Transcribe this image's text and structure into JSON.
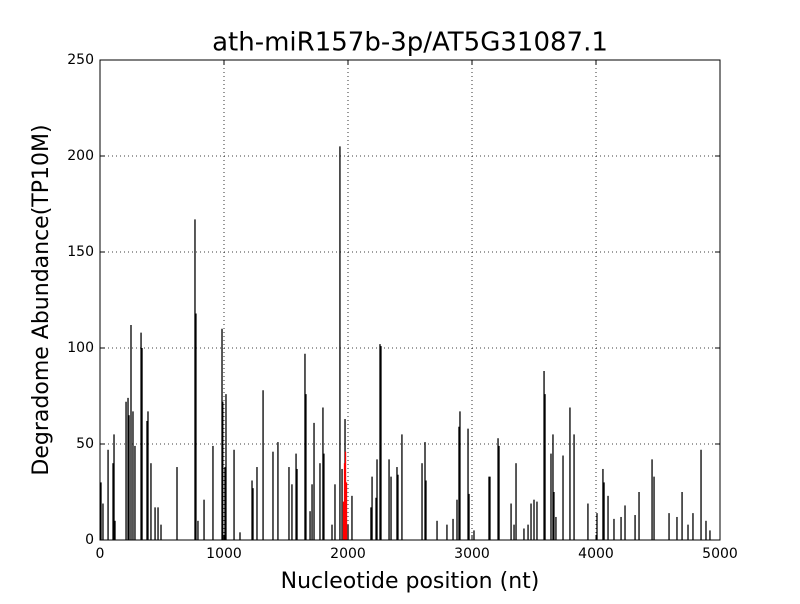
{
  "chart_data": {
    "type": "spike",
    "title": "ath-miR157b-3p/AT5G31087.1",
    "x_label": "Nucleotide position (nt)",
    "y_label": "Degradome Abundance(TP10M)",
    "xlim": [
      0,
      5000
    ],
    "xticks": [
      0,
      1000,
      2000,
      3000,
      4000,
      5000
    ],
    "ylim": [
      0,
      250
    ],
    "yticks": [
      0,
      50,
      100,
      150,
      200,
      250
    ],
    "grid": true,
    "series": [
      {
        "color": "#000000",
        "x": [
          8,
          24,
          65,
          105,
          113,
          121,
          210,
          226,
          234,
          250,
          266,
          282,
          331,
          339,
          379,
          387,
          411,
          444,
          468,
          492,
          621,
          766,
          774,
          790,
          839,
          911,
          984,
          990,
          1008,
          1016,
          1081,
          1129,
          1226,
          1234,
          1266,
          1315,
          1395,
          1435,
          1524,
          1548,
          1581,
          1589,
          1653,
          1661,
          1694,
          1710,
          1726,
          1774,
          1798,
          1806,
          1871,
          1895,
          1935,
          1952,
          1976,
          2000,
          2032,
          2185,
          2194,
          2226,
          2234,
          2258,
          2266,
          2331,
          2347,
          2395,
          2403,
          2435,
          2597,
          2621,
          2629,
          2718,
          2798,
          2847,
          2879,
          2895,
          2903,
          2968,
          2976,
          3016,
          3137,
          3145,
          3210,
          3218,
          3315,
          3339,
          3355,
          3419,
          3452,
          3476,
          3500,
          3524,
          3581,
          3589,
          3637,
          3653,
          3661,
          3677,
          3734,
          3790,
          3823,
          3935,
          4008,
          4056,
          4065,
          4097,
          4145,
          4202,
          4234,
          4315,
          4347,
          4452,
          4468,
          4589,
          4653,
          4694,
          4742,
          4782,
          4847,
          4887,
          4919
        ],
        "values": [
          30,
          19,
          47,
          40,
          55,
          10,
          72,
          74,
          65,
          112,
          67,
          49,
          108,
          100,
          62,
          67,
          40,
          17,
          17,
          8,
          38,
          167,
          118,
          10,
          21,
          49,
          110,
          72,
          38,
          76,
          47,
          4,
          31,
          27,
          38,
          78,
          46,
          51,
          38,
          29,
          45,
          37,
          97,
          76,
          15,
          29,
          61,
          40,
          69,
          45,
          8,
          29,
          205,
          37,
          63,
          8,
          23,
          17,
          33,
          22,
          42,
          102,
          101,
          42,
          33,
          38,
          34,
          55,
          40,
          51,
          31,
          10,
          8,
          11,
          21,
          59,
          67,
          58,
          24,
          5,
          33,
          33,
          53,
          49,
          19,
          8,
          40,
          6,
          8,
          19,
          21,
          20,
          88,
          76,
          45,
          55,
          25,
          12,
          44,
          69,
          55,
          19,
          14,
          37,
          30,
          23,
          11,
          12,
          18,
          13,
          25,
          42,
          33,
          14,
          12,
          25,
          8,
          14,
          47,
          10,
          5
        ]
      },
      {
        "color": "#ff0000",
        "x": [
          1964,
          1972,
          1980,
          1988
        ],
        "values": [
          20,
          40,
          46,
          30
        ]
      }
    ]
  }
}
